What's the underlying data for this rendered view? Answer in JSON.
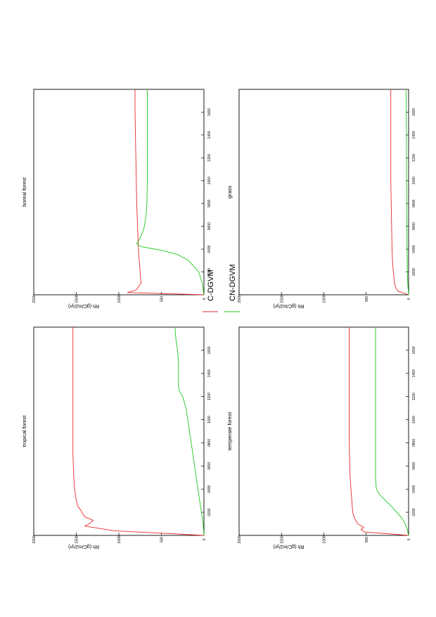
{
  "legend": [
    {
      "label": "C-DGVM",
      "color": "#e8282c"
    },
    {
      "label": "CN-DGVM",
      "color": "#1ec81e"
    }
  ],
  "chart_data": [
    {
      "type": "line",
      "title": "tropical forest",
      "ylabel": "Rh  (gC/m2/yr)",
      "xlabel": "",
      "xlim": [
        0,
        1800
      ],
      "ylim": [
        0,
        2000
      ],
      "x_ticks": [
        "0200",
        "0400",
        "0600",
        "0800",
        "1000",
        "1200",
        "1400",
        "1600"
      ],
      "x_tick_values": [
        200,
        400,
        600,
        800,
        1000,
        1200,
        1400,
        1600
      ],
      "y_ticks": [
        "0",
        "500",
        "1000",
        "1500",
        "2000"
      ],
      "y_tick_values": [
        0,
        500,
        1000,
        1500,
        2000
      ],
      "series": [
        {
          "name": "C-DGVM",
          "color": "#e8282c",
          "x": [
            0,
            40,
            80,
            100,
            130,
            160,
            180,
            220,
            250,
            300,
            400,
            500,
            600,
            700,
            800,
            900,
            1000,
            1200,
            1400,
            1600,
            1800
          ],
          "y": [
            0,
            1050,
            1400,
            1350,
            1300,
            1400,
            1420,
            1450,
            1480,
            1500,
            1520,
            1530,
            1535,
            1540,
            1540,
            1540,
            1540,
            1540,
            1540,
            1540,
            1540
          ]
        },
        {
          "name": "CN-DGVM",
          "color": "#1ec81e",
          "x": [
            0,
            100,
            200,
            300,
            400,
            500,
            600,
            700,
            800,
            900,
            1000,
            1100,
            1200,
            1250,
            1300,
            1400,
            1500,
            1600,
            1650,
            1700,
            1800
          ],
          "y": [
            0,
            10,
            30,
            50,
            70,
            90,
            110,
            130,
            150,
            170,
            190,
            210,
            250,
            290,
            300,
            300,
            300,
            310,
            320,
            330,
            340
          ]
        }
      ]
    },
    {
      "type": "line",
      "title": "boreal forest",
      "ylabel": "Rh  (gC/m2/yr)",
      "xlabel": "",
      "xlim": [
        0,
        1800
      ],
      "ylim": [
        0,
        2000
      ],
      "x_ticks": [
        "0200",
        "0400",
        "0600",
        "0800",
        "1000",
        "1200",
        "1400",
        "1600"
      ],
      "x_tick_values": [
        200,
        400,
        600,
        800,
        1000,
        1200,
        1400,
        1600
      ],
      "y_ticks": [
        "0",
        "500",
        "1000",
        "1500",
        "2000"
      ],
      "y_tick_values": [
        0,
        500,
        1000,
        1500,
        2000
      ],
      "series": [
        {
          "name": "C-DGVM",
          "color": "#e8282c",
          "x": [
            0,
            20,
            40,
            60,
            80,
            100,
            150,
            200,
            300,
            400,
            500,
            600,
            800,
            1000,
            1200,
            1400,
            1600,
            1800
          ],
          "y": [
            0,
            900,
            800,
            780,
            760,
            740,
            745,
            750,
            760,
            770,
            775,
            780,
            790,
            795,
            800,
            805,
            810,
            810
          ]
        },
        {
          "name": "CN-DGVM",
          "color": "#1ec81e",
          "x": [
            0,
            100,
            200,
            300,
            350,
            390,
            410,
            420,
            430,
            440,
            450,
            470,
            500,
            550,
            600,
            700,
            800,
            1000,
            1200,
            1400,
            1600,
            1800
          ],
          "y": [
            0,
            20,
            60,
            180,
            300,
            500,
            650,
            720,
            760,
            780,
            790,
            770,
            750,
            720,
            700,
            680,
            670,
            665,
            665,
            665,
            665,
            665
          ]
        }
      ]
    },
    {
      "type": "line",
      "title": "temperate forest",
      "ylabel": "Rh  (gC/m2/yr)",
      "xlabel": "",
      "xlim": [
        0,
        1800
      ],
      "ylim": [
        0,
        2000
      ],
      "x_ticks": [
        "0200",
        "0400",
        "0600",
        "0800",
        "1000",
        "1200",
        "1400",
        "1600"
      ],
      "x_tick_values": [
        200,
        400,
        600,
        800,
        1000,
        1200,
        1400,
        1600
      ],
      "y_ticks": [
        "0",
        "500",
        "1000",
        "1500",
        "2000"
      ],
      "y_tick_values": [
        0,
        500,
        1000,
        1500,
        2000
      ],
      "series": [
        {
          "name": "C-DGVM",
          "color": "#e8282c",
          "x": [
            0,
            30,
            50,
            70,
            100,
            150,
            200,
            300,
            400,
            500,
            600,
            800,
            1000,
            1200,
            1400,
            1600,
            1800
          ],
          "y": [
            0,
            520,
            560,
            530,
            600,
            640,
            660,
            670,
            680,
            690,
            695,
            700,
            700,
            700,
            700,
            700,
            700
          ]
        },
        {
          "name": "CN-DGVM",
          "color": "#1ec81e",
          "x": [
            0,
            50,
            100,
            150,
            200,
            250,
            300,
            350,
            400,
            450,
            500,
            600,
            800,
            1000,
            1200,
            1400,
            1600,
            1800
          ],
          "y": [
            0,
            15,
            40,
            80,
            140,
            200,
            270,
            340,
            380,
            385,
            390,
            390,
            390,
            390,
            390,
            390,
            390,
            390
          ]
        }
      ]
    },
    {
      "type": "line",
      "title": "grass",
      "ylabel": "Rh  (gC/m2/yr)",
      "xlabel": "",
      "xlim": [
        0,
        1800
      ],
      "ylim": [
        0,
        2000
      ],
      "x_ticks": [
        "0200",
        "0400",
        "0600",
        "0800",
        "1000",
        "1200",
        "1400",
        "1600"
      ],
      "x_tick_values": [
        200,
        400,
        600,
        800,
        1000,
        1200,
        1400,
        1600
      ],
      "y_ticks": [
        "0",
        "500",
        "1000",
        "1500",
        "2000"
      ],
      "y_tick_values": [
        0,
        500,
        1000,
        1500,
        2000
      ],
      "series": [
        {
          "name": "C-DGVM",
          "color": "#e8282c",
          "x": [
            0,
            30,
            60,
            100,
            200,
            300,
            400,
            600,
            800,
            1000,
            1200,
            1400,
            1600,
            1800
          ],
          "y": [
            0,
            120,
            150,
            165,
            180,
            190,
            195,
            200,
            205,
            210,
            210,
            210,
            210,
            210
          ]
        },
        {
          "name": "CN-DGVM",
          "color": "#1ec81e",
          "x": [
            0,
            50,
            100,
            200,
            400,
            600,
            800,
            1000,
            1200,
            1400,
            1600,
            1800
          ],
          "y": [
            0,
            5,
            10,
            15,
            18,
            20,
            22,
            24,
            25,
            26,
            27,
            28
          ]
        }
      ]
    }
  ]
}
